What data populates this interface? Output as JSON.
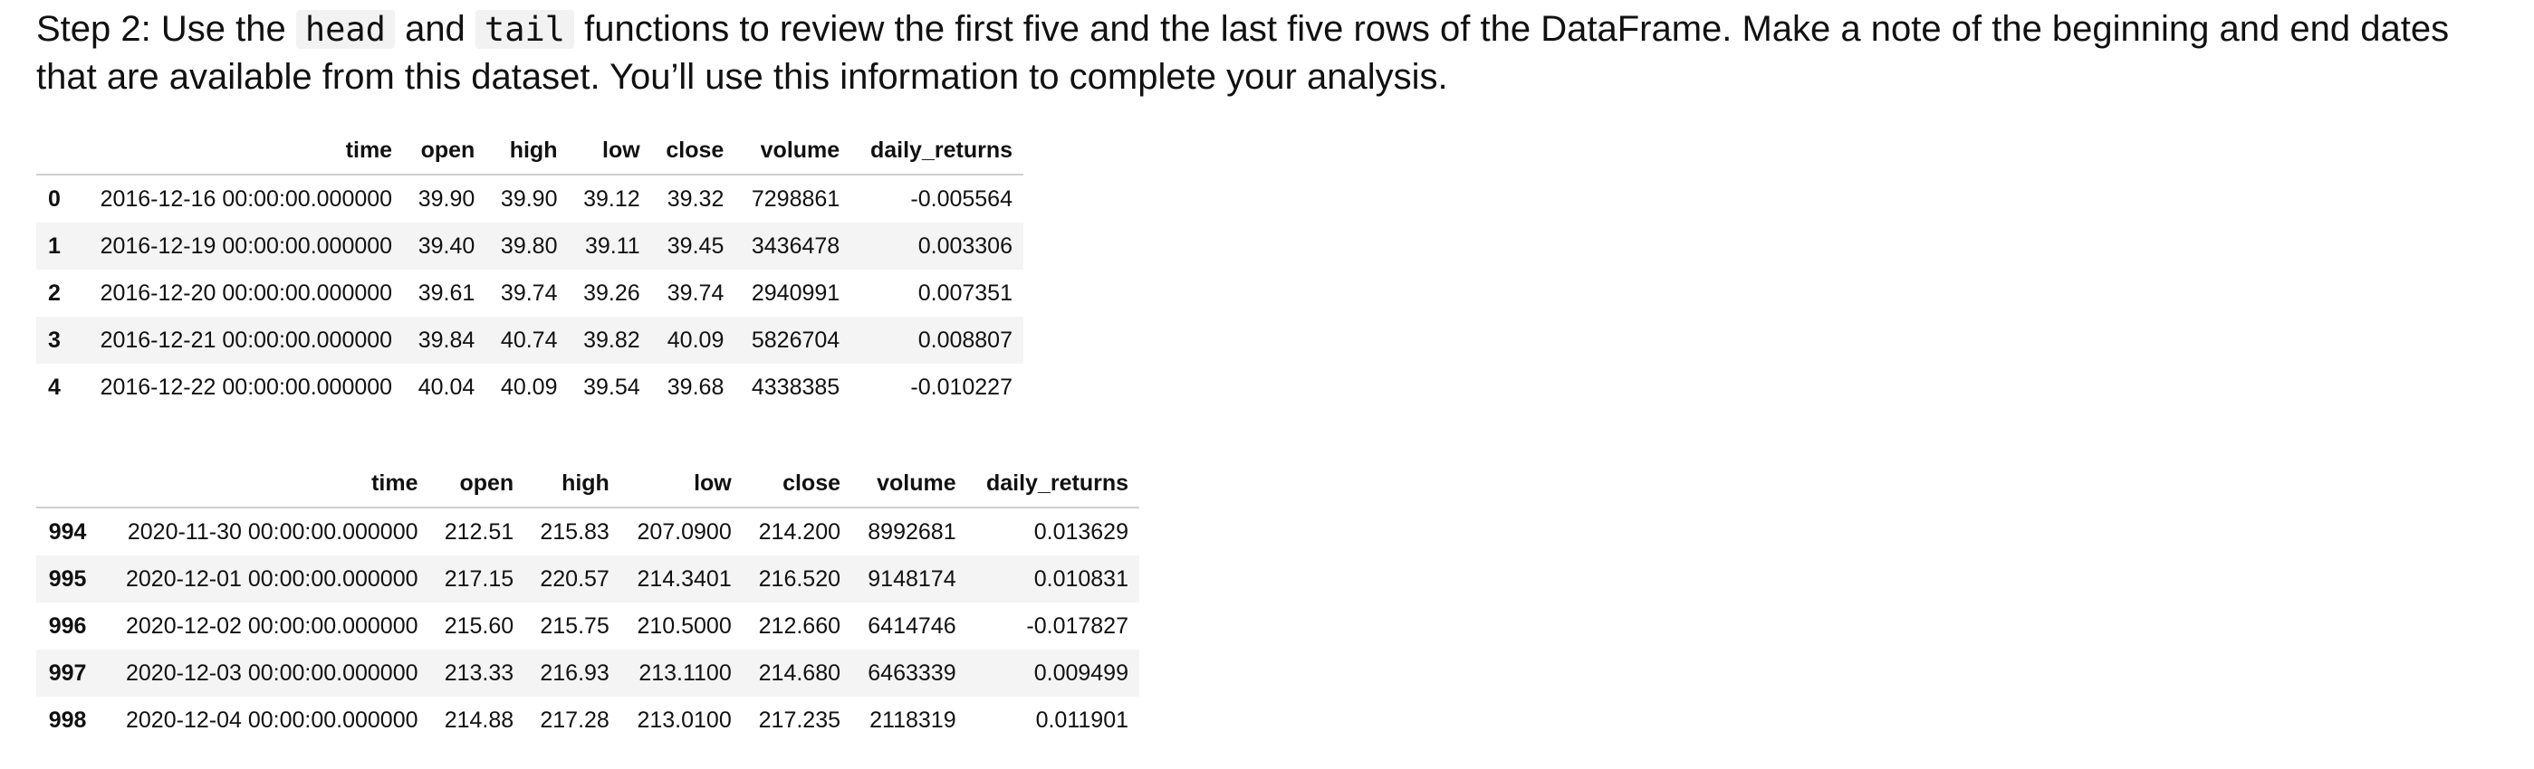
{
  "instruction": {
    "p1": "Step 2: Use the ",
    "code1": "head",
    "p2": " and ",
    "code2": "tail",
    "p3": " functions to review the first five and the last five rows of the DataFrame. Make a note of the beginning and end dates that are available from this dataset. You’ll use this information to complete your analysis."
  },
  "columns": [
    "time",
    "open",
    "high",
    "low",
    "close",
    "volume",
    "daily_returns"
  ],
  "head_rows": [
    [
      "0",
      "2016-12-16 00:00:00.000000",
      "39.90",
      "39.90",
      "39.12",
      "39.32",
      "7298861",
      "-0.005564"
    ],
    [
      "1",
      "2016-12-19 00:00:00.000000",
      "39.40",
      "39.80",
      "39.11",
      "39.45",
      "3436478",
      "0.003306"
    ],
    [
      "2",
      "2016-12-20 00:00:00.000000",
      "39.61",
      "39.74",
      "39.26",
      "39.74",
      "2940991",
      "0.007351"
    ],
    [
      "3",
      "2016-12-21 00:00:00.000000",
      "39.84",
      "40.74",
      "39.82",
      "40.09",
      "5826704",
      "0.008807"
    ],
    [
      "4",
      "2016-12-22 00:00:00.000000",
      "40.04",
      "40.09",
      "39.54",
      "39.68",
      "4338385",
      "-0.010227"
    ]
  ],
  "tail_rows": [
    [
      "994",
      "2020-11-30 00:00:00.000000",
      "212.51",
      "215.83",
      "207.0900",
      "214.200",
      "8992681",
      "0.013629"
    ],
    [
      "995",
      "2020-12-01 00:00:00.000000",
      "217.15",
      "220.57",
      "214.3401",
      "216.520",
      "9148174",
      "0.010831"
    ],
    [
      "996",
      "2020-12-02 00:00:00.000000",
      "215.60",
      "215.75",
      "210.5000",
      "212.660",
      "6414746",
      "-0.017827"
    ],
    [
      "997",
      "2020-12-03 00:00:00.000000",
      "213.33",
      "216.93",
      "213.1100",
      "214.680",
      "6463339",
      "0.009499"
    ],
    [
      "998",
      "2020-12-04 00:00:00.000000",
      "214.88",
      "217.28",
      "213.0100",
      "217.235",
      "2118319",
      "0.011901"
    ]
  ]
}
